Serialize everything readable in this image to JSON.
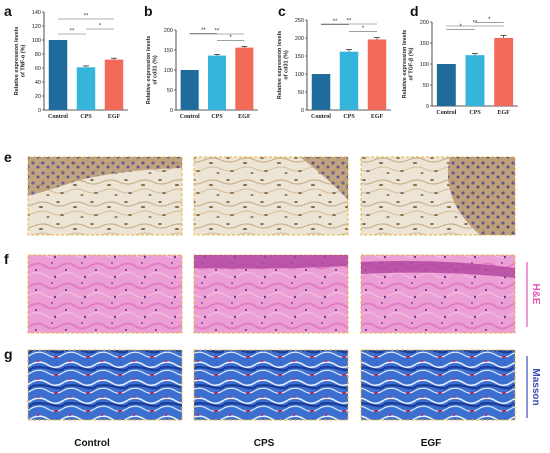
{
  "panel_letters": [
    "a",
    "b",
    "c",
    "d",
    "e",
    "f",
    "g"
  ],
  "colors": {
    "control": "#1e6b9c",
    "cps": "#35b4dc",
    "egf": "#f26a5a",
    "frame": "#e8b43c",
    "he": "#e754b7",
    "masson": "#3b4bb0"
  },
  "stain_labels": {
    "he": "H&E",
    "masson": "Masson"
  },
  "group_labels": [
    "Control",
    "CPS",
    "EGF"
  ],
  "chart_data": [
    {
      "type": "bar",
      "panel": "a",
      "ylabel": [
        "Relative expression levels",
        "of TNF-α (%)"
      ],
      "categories": [
        "Control",
        "CPS",
        "EGF"
      ],
      "values": [
        100,
        61,
        72
      ],
      "errors": [
        0,
        2,
        2
      ],
      "ylim": [
        0,
        140
      ],
      "yticks": [
        0,
        20,
        40,
        60,
        80,
        100,
        120,
        140
      ],
      "significance": [
        {
          "from": 0,
          "to": 2,
          "label": "**"
        },
        {
          "from": 1,
          "to": 2,
          "label": "*"
        },
        {
          "from": 0,
          "to": 1,
          "label": "**"
        }
      ]
    },
    {
      "type": "bar",
      "panel": "b",
      "ylabel": [
        "Relative expression levels",
        "of cd31 (%)"
      ],
      "categories": [
        "Control",
        "CPS",
        "EGF"
      ],
      "values": [
        100,
        136,
        156
      ],
      "errors": [
        0,
        3,
        3
      ],
      "ylim": [
        0,
        200
      ],
      "yticks": [
        0,
        50,
        100,
        150,
        200
      ],
      "significance": [
        {
          "from": 0,
          "to": 2,
          "label": "**"
        },
        {
          "from": 0,
          "to": 1,
          "label": "**"
        },
        {
          "from": 1,
          "to": 2,
          "label": "*"
        }
      ]
    },
    {
      "type": "bar",
      "panel": "c",
      "ylabel": [
        "Relative expression levels",
        "of cd31 (%)"
      ],
      "categories": [
        "Control",
        "CPS",
        "EGF"
      ],
      "values": [
        100,
        162,
        196
      ],
      "errors": [
        0,
        6,
        5
      ],
      "ylim": [
        0,
        250
      ],
      "yticks": [
        0,
        50,
        100,
        150,
        200,
        250
      ],
      "significance": [
        {
          "from": 0,
          "to": 2,
          "label": "**"
        },
        {
          "from": 0,
          "to": 1,
          "label": "**"
        },
        {
          "from": 1,
          "to": 2,
          "label": "*"
        }
      ]
    },
    {
      "type": "bar",
      "panel": "d",
      "ylabel": [
        "Relative expression levels",
        "of TGF-β (%)"
      ],
      "categories": [
        "Control",
        "CPS",
        "EGF"
      ],
      "values": [
        100,
        121,
        162
      ],
      "errors": [
        0,
        4,
        6
      ],
      "ylim": [
        0,
        200
      ],
      "yticks": [
        0,
        50,
        100,
        150,
        200
      ],
      "significance": [
        {
          "from": 0,
          "to": 2,
          "label": "**"
        },
        {
          "from": 1,
          "to": 2,
          "label": "*"
        },
        {
          "from": 0,
          "to": 1,
          "label": "*"
        }
      ]
    }
  ]
}
